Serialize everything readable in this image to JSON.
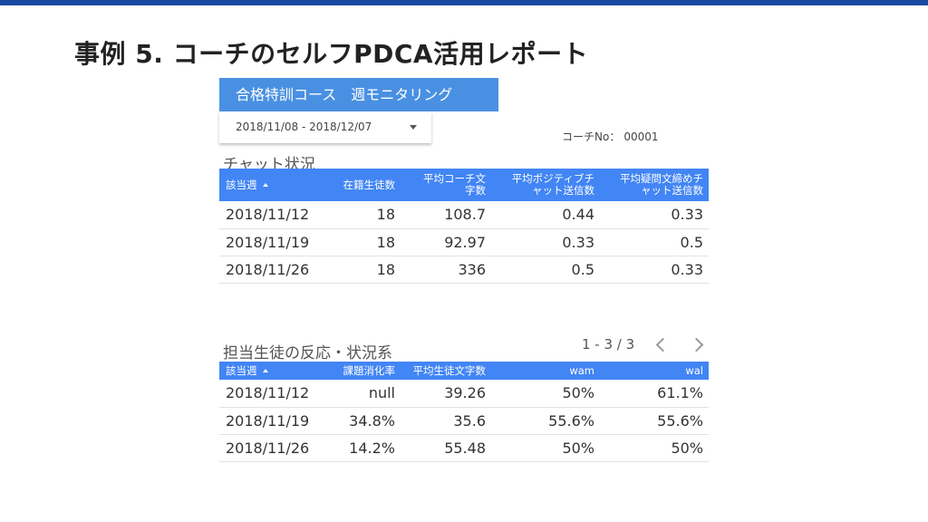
{
  "slide": {
    "title": "事例 5. コーチのセルフPDCA活用レポート"
  },
  "report": {
    "title": "合格特訓コース　週モニタリング"
  },
  "date_range": {
    "value": "2018/11/08 - 2018/12/07"
  },
  "coach": {
    "label": "コーチNo：",
    "value": "00001"
  },
  "chat_section": {
    "title": "チャット状況",
    "headers": [
      "該当週",
      "在籍生徒数",
      "平均コーチ文\n字数",
      "平均ポジティブチ\nャット送信数",
      "平均疑問文締めチ\nャット送信数"
    ],
    "rows": [
      [
        "2018/11/12",
        "18",
        "108.7",
        "0.44",
        "0.33"
      ],
      [
        "2018/11/19",
        "18",
        "92.97",
        "0.33",
        "0.5"
      ],
      [
        "2018/11/26",
        "18",
        "336",
        "0.5",
        "0.33"
      ]
    ]
  },
  "reaction_section": {
    "title": "担当生徒の反応・状況系",
    "pager": "1 - 3 / 3",
    "headers": [
      "該当週",
      "課題消化率",
      "平均生徒文字数",
      "wam",
      "wal"
    ],
    "rows": [
      [
        "2018/11/12",
        "null",
        "39.26",
        "50%",
        "61.1%"
      ],
      [
        "2018/11/19",
        "34.8%",
        "35.6",
        "55.6%",
        "55.6%"
      ],
      [
        "2018/11/26",
        "14.2%",
        "55.48",
        "50%",
        "50%"
      ]
    ]
  },
  "colors": {
    "header_blue": "#4285f4",
    "report_bar": "#4a90e2",
    "top_bar": "#1a4aa0"
  },
  "icons": {
    "sort": "sort-ascending-icon",
    "dropdown": "dropdown-caret-icon",
    "prev": "chevron-left-icon",
    "next": "chevron-right-icon"
  }
}
